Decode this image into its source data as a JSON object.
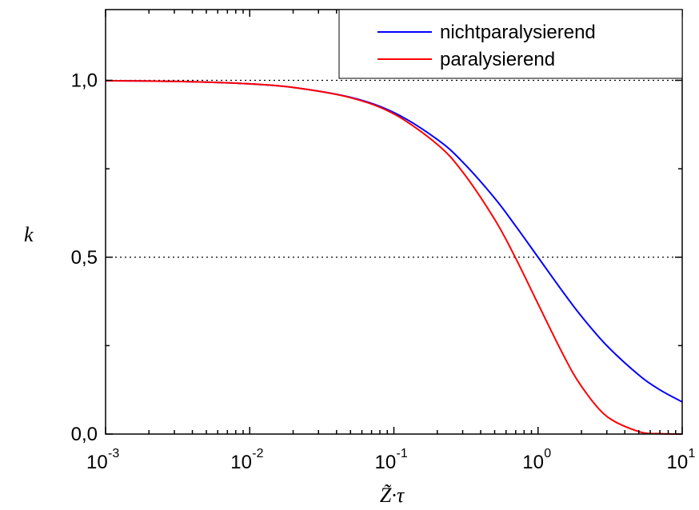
{
  "chart_data": {
    "type": "line",
    "x_scale": "log",
    "xlim": [
      0.001,
      10
    ],
    "ylim": [
      0,
      1.2
    ],
    "x_ticks": [
      {
        "value": 0.001,
        "base": "10",
        "exp": "-3"
      },
      {
        "value": 0.01,
        "base": "10",
        "exp": "-2"
      },
      {
        "value": 0.1,
        "base": "10",
        "exp": "-1"
      },
      {
        "value": 1,
        "base": "10",
        "exp": "0"
      },
      {
        "value": 10,
        "base": "10",
        "exp": "1"
      }
    ],
    "y_ticks": [
      {
        "value": 0.0,
        "label": "0,0"
      },
      {
        "value": 0.5,
        "label": "0,5"
      },
      {
        "value": 1.0,
        "label": "1,0"
      }
    ],
    "xlabel": "Z̃·τ",
    "ylabel": "k",
    "reference_lines_y": [
      0.5,
      1.0
    ],
    "legend_position": "top-right",
    "series": [
      {
        "name": "nichtparalysierend",
        "color": "#0000ff",
        "x": [
          0.001,
          0.002,
          0.005,
          0.01,
          0.02,
          0.05,
          0.1,
          0.2,
          0.3,
          0.5,
          0.7,
          1,
          1.5,
          2,
          3,
          5,
          7,
          10
        ],
        "y": [
          0.999,
          0.998,
          0.995,
          0.99,
          0.98,
          0.952,
          0.909,
          0.833,
          0.769,
          0.667,
          0.588,
          0.5,
          0.4,
          0.333,
          0.25,
          0.167,
          0.125,
          0.091
        ]
      },
      {
        "name": "paralysierend",
        "color": "#ff0000",
        "x": [
          0.001,
          0.002,
          0.005,
          0.01,
          0.02,
          0.05,
          0.1,
          0.2,
          0.3,
          0.5,
          0.7,
          1,
          1.5,
          2,
          3,
          5,
          7,
          10
        ],
        "y": [
          0.999,
          0.998,
          0.995,
          0.99,
          0.98,
          0.951,
          0.905,
          0.819,
          0.741,
          0.607,
          0.497,
          0.368,
          0.223,
          0.135,
          0.05,
          0.007,
          0.001,
          0.0
        ]
      }
    ]
  }
}
